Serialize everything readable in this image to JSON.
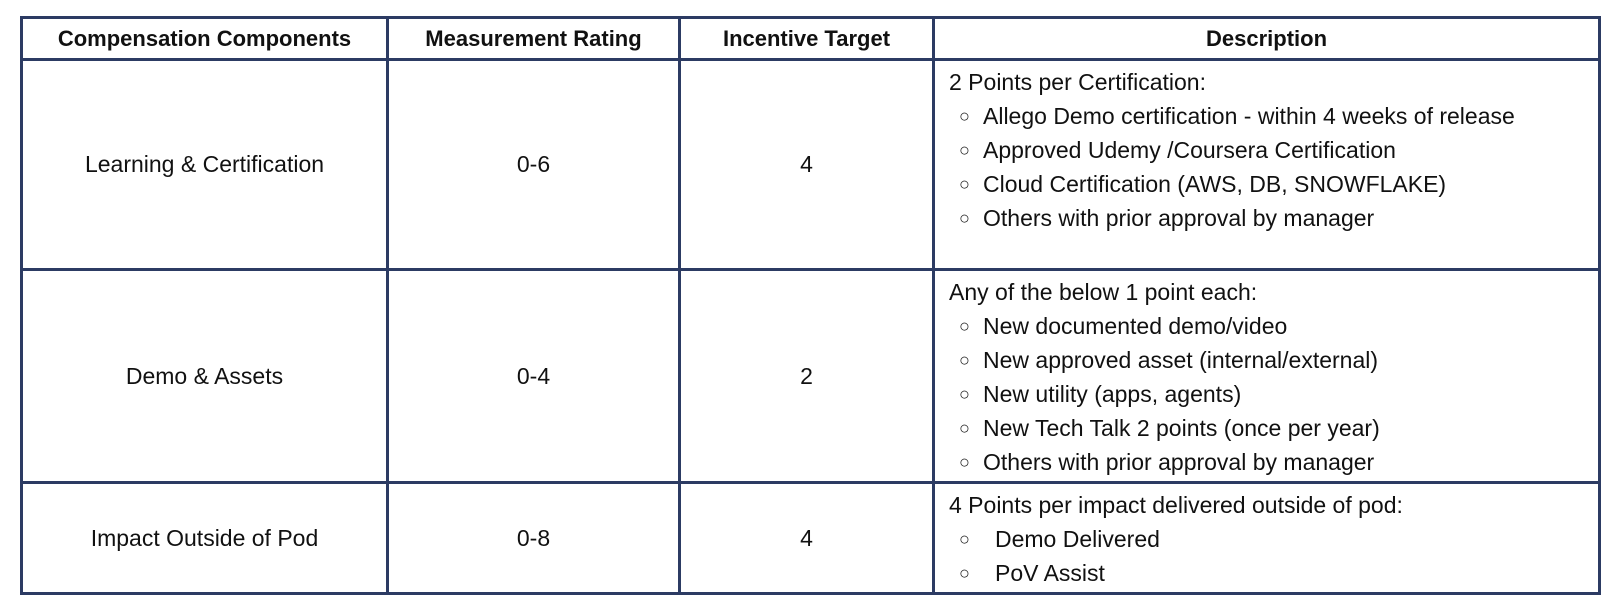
{
  "colors": {
    "border": "#2c3b63",
    "text": "#111111",
    "background": "#ffffff"
  },
  "table": {
    "headers": [
      "Compensation Components",
      "Measurement Rating",
      "Incentive Target",
      "Description"
    ],
    "bullet_icon": "hollow-circle-bullet",
    "bullet_glyph": "○",
    "rows": [
      {
        "component": "Learning & Certification",
        "rating": "0-6",
        "target": "4",
        "intro": "2 Points per Certification:",
        "bullets": [
          "Allego Demo certification - within 4 weeks of release",
          "Approved Udemy /Coursera Certification",
          "Cloud  Certification (AWS, DB, SNOWFLAKE)",
          "Others with prior approval by manager"
        ]
      },
      {
        "component": "Demo & Assets",
        "rating": "0-4",
        "target": "2",
        "intro": "Any of the below 1 point each:",
        "bullets": [
          "New documented demo/video",
          "New approved asset (internal/external)",
          "New utility (apps, agents)",
          "New Tech Talk 2 points (once per year)",
          "Others with prior approval by manager"
        ]
      },
      {
        "component": "Impact Outside of Pod",
        "rating": "0-8",
        "target": "4",
        "intro": "4 Points per impact delivered outside of pod:",
        "bullets": [
          "Demo Delivered",
          "PoV Assist"
        ]
      }
    ]
  }
}
